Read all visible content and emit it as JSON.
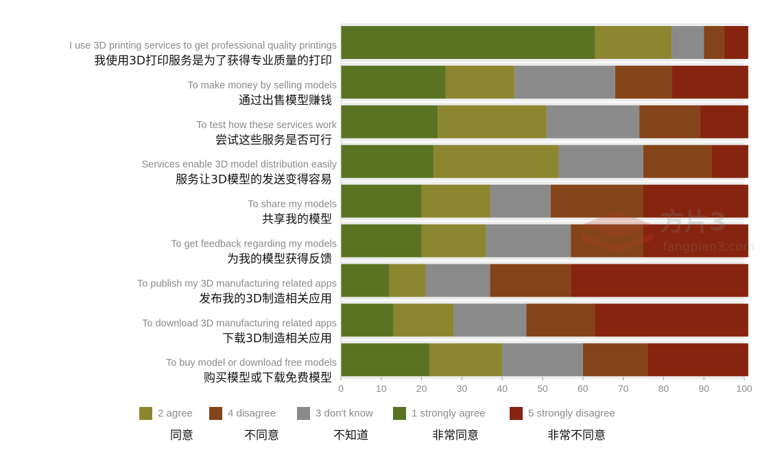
{
  "chart_data": {
    "type": "bar",
    "orientation": "horizontal",
    "stacked": true,
    "categories": [
      {
        "en": "I use 3D printing services to get professional quality printings",
        "zh": "我使用3D打印服务是为了获得专业质量的打印"
      },
      {
        "en": "To make money by selling models",
        "zh": "通过出售模型赚钱"
      },
      {
        "en": "To test how these services work",
        "zh": "尝试这些服务是否可行"
      },
      {
        "en": "Services enable 3D model distribution easily",
        "zh": "服务让3D模型的发送变得容易"
      },
      {
        "en": "To share my models",
        "zh": "共享我的模型"
      },
      {
        "en": "To get feedback regarding my models",
        "zh": "为我的模型获得反馈"
      },
      {
        "en": "To publish my 3D manufacturing related apps",
        "zh": "发布我的3D制造相关应用"
      },
      {
        "en": "To download 3D manufacturing related apps",
        "zh": "下载3D制造相关应用"
      },
      {
        "en": "To buy model or download free models",
        "zh": "购买模型或下载免费模型"
      }
    ],
    "series": [
      {
        "name": "1 strongly agree",
        "name_zh": "非常同意",
        "color": "#5a7323",
        "values": [
          63,
          26,
          24,
          23,
          20,
          20,
          12,
          13,
          22
        ]
      },
      {
        "name": "2 agree",
        "name_zh": "同意",
        "color": "#8c8630",
        "values": [
          19,
          17,
          27,
          31,
          17,
          16,
          9,
          15,
          18
        ]
      },
      {
        "name": "3 don't know",
        "name_zh": "不知道",
        "color": "#8a8a8a",
        "values": [
          8,
          25,
          23,
          21,
          15,
          21,
          16,
          18,
          20
        ]
      },
      {
        "name": "4 disagree",
        "name_zh": "不同意",
        "color": "#84441a",
        "values": [
          5,
          14,
          15,
          17,
          23,
          18,
          20,
          17,
          16
        ]
      },
      {
        "name": "5 strongly disagree",
        "name_zh": "非常不同意",
        "color": "#87240f",
        "values": [
          6,
          19,
          12,
          9,
          26,
          26,
          44,
          38,
          25
        ]
      }
    ],
    "legend_order": [
      "2 agree",
      "4 disagree",
      "3 don't know",
      "1 strongly agree",
      "5 strongly disagree"
    ],
    "xlim": [
      0,
      100
    ],
    "xticks": [
      0,
      10,
      20,
      30,
      40,
      50,
      60,
      70,
      80,
      90,
      100
    ],
    "grid": false,
    "legend_position": "bottom"
  },
  "watermark": {
    "brand": "方片3",
    "url": "fangpian3.com"
  }
}
